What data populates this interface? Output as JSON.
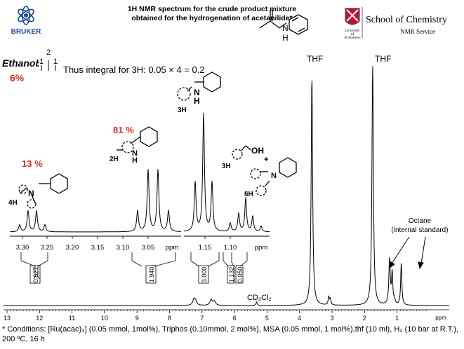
{
  "header": {
    "bruker_logo_text": "BRUKER",
    "title_line1": "1H NMR spectrum for the crude product mixture",
    "title_line2": "obtained for the hydrogenation of acetanilide*",
    "university_small1": "University",
    "university_small2": "of",
    "university_small3": "St Andrews",
    "school_name": "School of Chemistry",
    "service_name": "NMR Service",
    "structure_nh": "N",
    "structure_h": "H"
  },
  "ethanol": {
    "label": "Ethanol",
    "colon": ":",
    "multiplet_top": "2",
    "multiplet_one_a": "1",
    "multiplet_one_b": "1",
    "percent": "6%",
    "integral_note": "Thus integral for 3H: 0.05 × 4 = 0.2"
  },
  "peak_labels": {
    "thf_left": "THF",
    "thf_right": "THF",
    "cd2cl2": "CD₂Cl₂",
    "octane_line1": "Octane",
    "octane_line2": "(internal standard)"
  },
  "inset_left": {
    "percent": "13 %",
    "h_label": "4H",
    "n_label": "N",
    "ticks": [
      "3.30",
      "3.25",
      "3.20",
      "3.15",
      "3.10",
      "3.05",
      "ppm"
    ],
    "integrals": [
      "0.627",
      "1.940"
    ]
  },
  "inset_mid": {
    "percent": "81 %",
    "h_label": "2H",
    "nh_label": "N",
    "nh_h": "H"
  },
  "inset_right": {
    "h_label_top": "3H",
    "nh_label": "N",
    "nh_h": "H",
    "oh_label": "OH",
    "h_label_oh": "3H",
    "plus": "+",
    "n_label": "N",
    "h_label_6h": "6H",
    "ticks": [
      "1.15",
      "1.10",
      "ppm"
    ],
    "integrals": [
      "3.000",
      "1.132",
      "0.050"
    ]
  },
  "x_axis": {
    "ticks": [
      "13",
      "12",
      "11",
      "10",
      "9",
      "8",
      "7",
      "6",
      "5",
      "4",
      "3",
      "2",
      "1",
      "ppm"
    ]
  },
  "footnote": {
    "line1": "* Conditions: [Ru(acac)₃] (0.05 mmol, 1mol%), Triphos (0.10mmol, 2 mol%), MSA (0.05 mmol, 1 mol%),thf (10 ml), H₂ (10 bar at R.T.),",
    "line2": "200 ºC, 16 h"
  },
  "colors": {
    "accent_red": "#c9302c",
    "logo_blue": "#1a4b8c"
  }
}
